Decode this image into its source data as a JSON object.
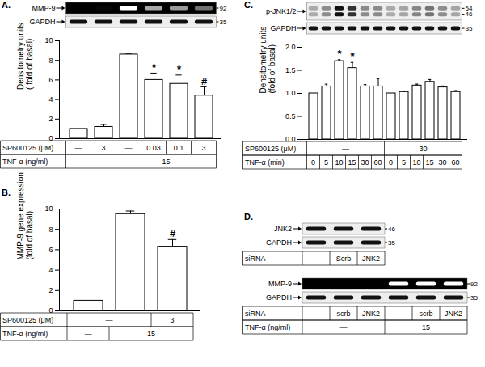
{
  "chart_data": [
    {
      "panel": "A.",
      "type": "bar",
      "color": "#ffffff",
      "y_label": "Densitometry units\n( fold of basal)",
      "values": [
        1.0,
        1.2,
        8.6,
        6.0,
        5.6,
        4.4
      ],
      "errors": [
        null,
        0.25,
        0.1,
        0.7,
        0.9,
        0.9
      ],
      "significance": [
        null,
        null,
        null,
        "*",
        "*",
        "#"
      ],
      "ylim": [
        0,
        10
      ],
      "yticks": [
        0,
        2,
        4,
        6,
        8,
        10
      ],
      "blots": [
        {
          "label": "MMP-9",
          "mw": [
            92
          ],
          "color": "#000000"
        },
        {
          "label": "GAPDH",
          "mw": [
            35
          ],
          "color": "#eeeeee"
        }
      ],
      "conditions": [
        {
          "label": "SP600125 (μM)",
          "cells": [
            {
              "text": "—",
              "span": 1
            },
            {
              "text": "3",
              "span": 1
            },
            {
              "text": "—",
              "span": 1
            },
            {
              "text": "0.03",
              "span": 1
            },
            {
              "text": "0.1",
              "span": 1
            },
            {
              "text": "3",
              "span": 1
            }
          ]
        },
        {
          "label": "TNF-α (ng/ml)",
          "cells": [
            {
              "text": "—",
              "span": 2
            },
            {
              "text": "15",
              "span": 4
            }
          ]
        }
      ]
    },
    {
      "panel": "B.",
      "type": "bar",
      "color": "#ffffff",
      "y_label": "MMP-9 gene expression\n(fold of basal)",
      "values": [
        1.0,
        9.5,
        6.3
      ],
      "errors": [
        null,
        0.3,
        0.7
      ],
      "significance": [
        null,
        null,
        "#"
      ],
      "ylim": [
        0,
        10
      ],
      "yticks": [
        0,
        2,
        4,
        6,
        8,
        10
      ],
      "conditions": [
        {
          "label": "SP600125 (μM)",
          "cells": [
            {
              "text": "—",
              "span": 2
            },
            {
              "text": "3",
              "span": 1
            }
          ]
        },
        {
          "label": "TNF-α (ng/ml)",
          "cells": [
            {
              "text": "—",
              "span": 1
            },
            {
              "text": "15",
              "span": 2
            }
          ]
        }
      ]
    },
    {
      "panel": "C.",
      "type": "bar",
      "color": "#ffffff",
      "y_label": "Densitometry units\n(fold of basal)",
      "values": [
        1.0,
        1.15,
        1.7,
        1.55,
        1.15,
        1.15,
        1.0,
        1.03,
        1.17,
        1.25,
        1.13,
        1.03
      ],
      "errors": [
        null,
        0.05,
        0.03,
        0.12,
        0.04,
        0.17,
        null,
        0.01,
        0.03,
        0.05,
        0.03,
        0.03
      ],
      "significance": [
        null,
        null,
        "*",
        "*",
        null,
        null,
        null,
        null,
        null,
        null,
        null,
        null
      ],
      "ylim": [
        0,
        2
      ],
      "yticks": [
        {
          "value": 0,
          "label": "0.0"
        },
        0.5,
        {
          "value": 1,
          "label": "1.0"
        },
        1.5,
        {
          "value": 2,
          "label": "2.0"
        }
      ],
      "blots": [
        {
          "label": "p-JNK1/2",
          "mw": [
            54,
            46
          ],
          "color": "#eeeeee"
        },
        {
          "label": "GAPDH",
          "mw": [
            35
          ],
          "color": "#eeeeee"
        }
      ],
      "conditions": [
        {
          "label": "SP600125 (μM)",
          "cells": [
            {
              "text": "—",
              "span": 6
            },
            {
              "text": "30",
              "span": 6
            }
          ]
        },
        {
          "label": "TNF-α (min)",
          "cells": [
            {
              "text": "0",
              "span": 1
            },
            {
              "text": "5",
              "span": 1
            },
            {
              "text": "10",
              "span": 1
            },
            {
              "text": "15",
              "span": 1
            },
            {
              "text": "30",
              "span": 1
            },
            {
              "text": "60",
              "span": 1
            },
            {
              "text": "0",
              "span": 1
            },
            {
              "text": "5",
              "span": 1
            },
            {
              "text": "10",
              "span": 1
            },
            {
              "text": "15",
              "span": 1
            },
            {
              "text": "30",
              "span": 1
            },
            {
              "text": "60",
              "span": 1
            }
          ]
        }
      ]
    },
    {
      "panel": "D.",
      "type": "blot",
      "groups": [
        {
          "blots": [
            {
              "label": "JNK2",
              "mw": [
                46
              ],
              "color": "#eeeeee"
            },
            {
              "label": "GAPDH",
              "mw": [
                35
              ],
              "color": "#eeeeee"
            }
          ],
          "conditions": [
            {
              "label": "siRNA",
              "cells": [
                {
                  "text": "—",
                  "span": 1
                },
                {
                  "text": "Scrb",
                  "span": 1
                },
                {
                  "text": "JNK2",
                  "span": 1
                }
              ]
            }
          ]
        },
        {
          "blots": [
            {
              "label": "MMP-9",
              "mw": [
                92
              ],
              "color": "#000000"
            },
            {
              "label": "GAPDH",
              "mw": [
                35
              ],
              "color": "#eeeeee"
            }
          ],
          "conditions": [
            {
              "label": "siRNA",
              "cells": [
                {
                  "text": "—",
                  "span": 1
                },
                {
                  "text": "scrb",
                  "span": 1
                },
                {
                  "text": "JNK2",
                  "span": 1
                },
                {
                  "text": "—",
                  "span": 1
                },
                {
                  "text": "scrb",
                  "span": 1
                },
                {
                  "text": "JNK2",
                  "span": 1
                }
              ]
            },
            {
              "label": "TNF-α (ng/ml)",
              "cells": [
                {
                  "text": "—",
                  "span": 3
                },
                {
                  "text": "15",
                  "span": 3
                }
              ]
            }
          ]
        }
      ]
    }
  ]
}
